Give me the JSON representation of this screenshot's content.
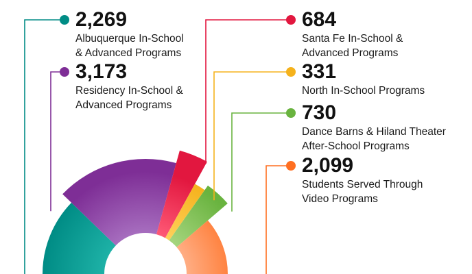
{
  "chart_data": {
    "type": "pie",
    "title": "",
    "series": [
      {
        "value": 2269,
        "value_label": "2,269",
        "label_lines": [
          "Albuquerque In-School",
          "& Advanced Programs"
        ],
        "color": "#008c85",
        "color_light": "#1fb3a8"
      },
      {
        "value": 3173,
        "value_label": "3,173",
        "label_lines": [
          "Residency In-School &",
          "Advanced Programs"
        ],
        "color": "#7e2e96",
        "color_light": "#a870c0"
      },
      {
        "value": 684,
        "value_label": "684",
        "label_lines": [
          "Santa Fe In-School &",
          "Advanced Programs"
        ],
        "color": "#e2173f",
        "color_light": "#ff5c78"
      },
      {
        "value": 331,
        "value_label": "331",
        "label_lines": [
          "North In-School Programs"
        ],
        "color": "#f5b21c",
        "color_light": "#ffd25e"
      },
      {
        "value": 730,
        "value_label": "730",
        "label_lines": [
          "Dance Barns & Hiland Theater",
          "After-School Programs"
        ],
        "color": "#69b33f",
        "color_light": "#a8d680"
      },
      {
        "value": 2099,
        "value_label": "2,099",
        "label_lines": [
          "Students Served Through",
          "Video Programs"
        ],
        "color": "#ff6f21",
        "color_light": "#ffb088"
      }
    ]
  }
}
